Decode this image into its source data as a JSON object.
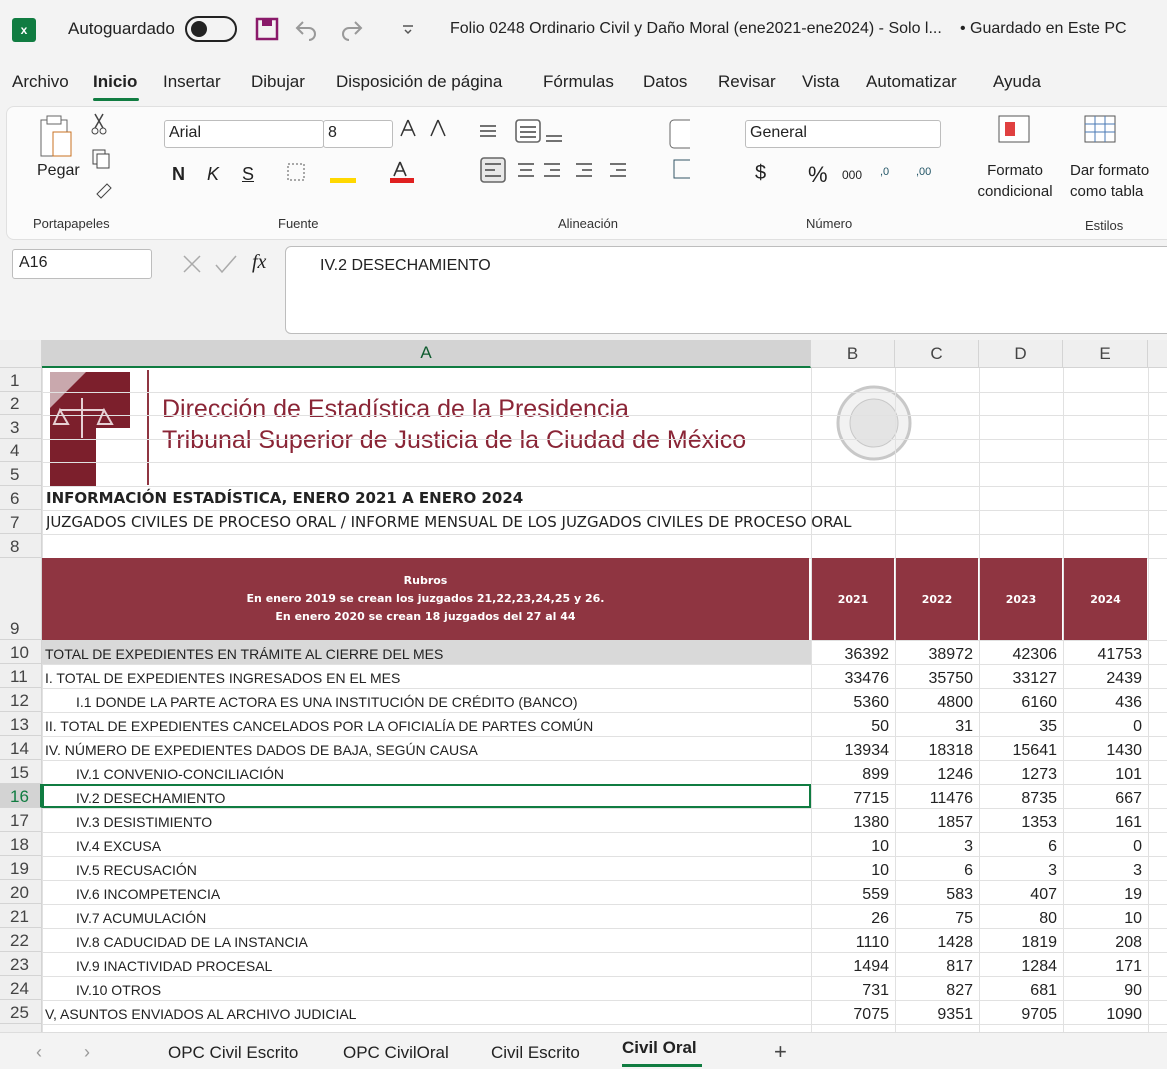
{
  "titlebar": {
    "autosave": "Autoguardado",
    "filename": "Folio 0248 Ordinario Civil y Daño Moral (ene2021-ene2024)  -  Solo l...",
    "status": "• Guardado en Este PC"
  },
  "menu": [
    "Archivo",
    "Inicio",
    "Insertar",
    "Dibujar",
    "Disposición de página",
    "Fórmulas",
    "Datos",
    "Revisar",
    "Vista",
    "Automatizar",
    "Ayuda"
  ],
  "ribbon": {
    "paste": "Pegar",
    "font": "Arial",
    "font_size": 8,
    "bold": "N",
    "italic": "K",
    "underline": "S",
    "number_format": "General",
    "currency": "$",
    "percent": "%",
    "thousands": "000",
    "decimals": [
      ",0",
      ",00"
    ],
    "conditional_format": "Formato condicional",
    "format_table": "Dar formato como tabla",
    "groups": [
      "Portapapeles",
      "Fuente",
      "Alineación",
      "Número",
      "Estilos"
    ]
  },
  "formula_bar": {
    "name_box": "A16",
    "fx": "fx",
    "content": "IV.2 DESECHAMIENTO"
  },
  "sheet": {
    "column_headers": [
      "A",
      "B",
      "C",
      "D",
      "E"
    ],
    "row_headers": [
      1,
      2,
      3,
      4,
      5,
      6,
      7,
      8,
      9,
      10,
      11,
      12,
      13,
      14,
      15,
      16,
      17,
      18,
      19,
      20,
      21,
      22,
      23,
      24,
      25
    ],
    "logo_title": "Dirección de Estadística de la Presidencia",
    "logo_subtitle": "Tribunal Superior de Justicia de la Ciudad de México",
    "title": "INFORMACIÓN ESTADÍSTICA, ENERO 2021 A ENERO 2024",
    "subtitle": "JUZGADOS CIVILES DE PROCESO ORAL / INFORME MENSUAL DE LOS JUZGADOS CIVILES DE PROCESO ORAL",
    "header": {
      "label": "Rubros",
      "notes": [
        "En enero 2019 se crean los juzgados 21,22,23,24,25 y 26.",
        "En enero 2020 se crean 18 juzgados del 27 al 44"
      ],
      "years": [
        2021,
        2022,
        2023,
        2024
      ]
    },
    "rows": [
      {
        "label": "TOTAL DE EXPEDIENTES EN TRÁMITE AL CIERRE DEL MES",
        "indent": false,
        "highlight": true,
        "values": [
          36392,
          38972,
          42306,
          41753
        ]
      },
      {
        "label": "I. TOTAL DE EXPEDIENTES INGRESADOS EN EL MES",
        "indent": false,
        "values": [
          33476,
          35750,
          33127,
          2439
        ]
      },
      {
        "label": "I.1 DONDE LA PARTE ACTORA ES UNA INSTITUCIÓN DE CRÉDITO (BANCO)",
        "indent": true,
        "values": [
          5360,
          4800,
          6160,
          436
        ]
      },
      {
        "label": "II. TOTAL DE EXPEDIENTES CANCELADOS POR LA OFICIALÍA DE PARTES COMÚN",
        "indent": false,
        "values": [
          50,
          31,
          35,
          0
        ]
      },
      {
        "label": "IV. NÚMERO DE EXPEDIENTES DADOS DE BAJA, SEGÚN CAUSA",
        "indent": false,
        "values": [
          13934,
          18318,
          15641,
          1430
        ]
      },
      {
        "label": "IV.1 CONVENIO-CONCILIACIÓN",
        "indent": true,
        "values": [
          899,
          1246,
          1273,
          101
        ]
      },
      {
        "label": "IV.2 DESECHAMIENTO",
        "indent": true,
        "values": [
          7715,
          11476,
          8735,
          667
        ]
      },
      {
        "label": "IV.3 DESISTIMIENTO",
        "indent": true,
        "values": [
          1380,
          1857,
          1353,
          161
        ]
      },
      {
        "label": "IV.4 EXCUSA",
        "indent": true,
        "values": [
          10,
          3,
          6,
          0
        ]
      },
      {
        "label": "IV.5 RECUSACIÓN",
        "indent": true,
        "values": [
          10,
          6,
          3,
          3
        ]
      },
      {
        "label": "IV.6 INCOMPETENCIA",
        "indent": true,
        "values": [
          559,
          583,
          407,
          19
        ]
      },
      {
        "label": "IV.7 ACUMULACIÓN",
        "indent": true,
        "values": [
          26,
          75,
          80,
          10
        ]
      },
      {
        "label": "IV.8 CADUCIDAD DE LA INSTANCIA",
        "indent": true,
        "values": [
          1110,
          1428,
          1819,
          208
        ]
      },
      {
        "label": "IV.9 INACTIVIDAD PROCESAL",
        "indent": true,
        "values": [
          1494,
          817,
          1284,
          171
        ]
      },
      {
        "label": "IV.10 OTROS",
        "indent": true,
        "values": [
          731,
          827,
          681,
          90
        ]
      },
      {
        "label": "V, ASUNTOS ENVIADOS AL ARCHIVO JUDICIAL",
        "indent": false,
        "values": [
          7075,
          9351,
          9705,
          1090
        ]
      }
    ]
  },
  "tabs": [
    "OPC Civil Escrito",
    "OPC CivilOral",
    "Civil Escrito",
    "Civil Oral"
  ]
}
